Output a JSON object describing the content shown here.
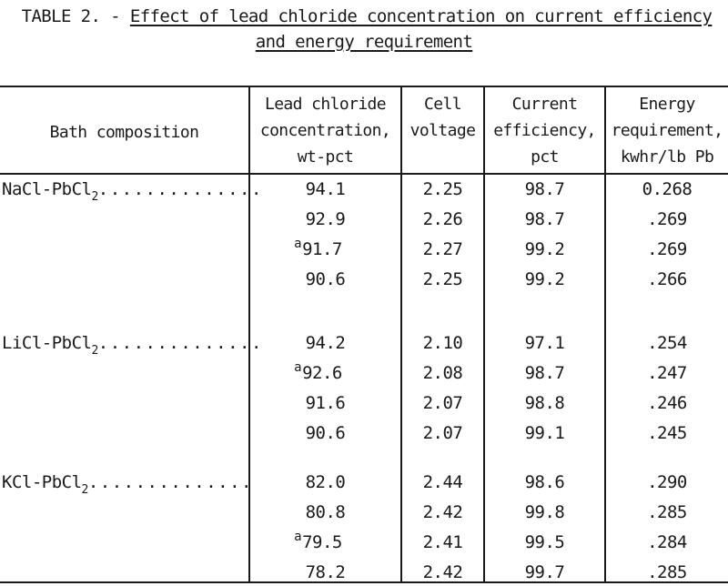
{
  "caption": {
    "prefix": "TABLE 2. - ",
    "title_line1": "Effect of lead chloride concentration on current efficiency",
    "title_line2": "and energy requirement"
  },
  "columns": {
    "bath": "Bath composition",
    "conc": [
      "Lead chloride",
      "concentration,",
      "wt-pct"
    ],
    "voltage": [
      "Cell",
      "voltage"
    ],
    "efficiency": [
      "Current",
      "efficiency,",
      "pct"
    ],
    "energy": [
      "Energy",
      "requirement,",
      "kwhr/lb Pb"
    ]
  },
  "groups": [
    {
      "bath_prefix": "NaCl-PbCl",
      "bath_sub": "2",
      "dots": "..............",
      "rows": [
        {
          "mark": "",
          "conc": "94.1",
          "voltage": "2.25",
          "efficiency": "98.7",
          "energy": "0.268"
        },
        {
          "mark": "",
          "conc": "92.9",
          "voltage": "2.26",
          "efficiency": "98.7",
          "energy": ".269"
        },
        {
          "mark": "a",
          "conc": "91.7",
          "voltage": "2.27",
          "efficiency": "99.2",
          "energy": ".269"
        },
        {
          "mark": "",
          "conc": "90.6",
          "voltage": "2.25",
          "efficiency": "99.2",
          "energy": ".266"
        }
      ]
    },
    {
      "bath_prefix": "LiCl-PbCl",
      "bath_sub": "2",
      "dots": "..............",
      "rows": [
        {
          "mark": "",
          "conc": "94.2",
          "voltage": "2.10",
          "efficiency": "97.1",
          "energy": ".254"
        },
        {
          "mark": "a",
          "conc": "92.6",
          "voltage": "2.08",
          "efficiency": "98.7",
          "energy": ".247"
        },
        {
          "mark": "",
          "conc": "91.6",
          "voltage": "2.07",
          "efficiency": "98.8",
          "energy": ".246"
        },
        {
          "mark": "",
          "conc": "90.6",
          "voltage": "2.07",
          "efficiency": "99.1",
          "energy": ".245"
        }
      ]
    },
    {
      "bath_prefix": "KCl-PbCl",
      "bath_sub": "2",
      "dots": "..............",
      "rows": [
        {
          "mark": "",
          "conc": "82.0",
          "voltage": "2.44",
          "efficiency": "98.6",
          "energy": ".290"
        },
        {
          "mark": "",
          "conc": "80.8",
          "voltage": "2.42",
          "efficiency": "99.8",
          "energy": ".285"
        },
        {
          "mark": "a",
          "conc": "79.5",
          "voltage": "2.41",
          "efficiency": "99.5",
          "energy": ".284"
        },
        {
          "mark": "",
          "conc": "78.2",
          "voltage": "2.42",
          "efficiency": "99.7",
          "energy": ".285"
        }
      ]
    }
  ]
}
